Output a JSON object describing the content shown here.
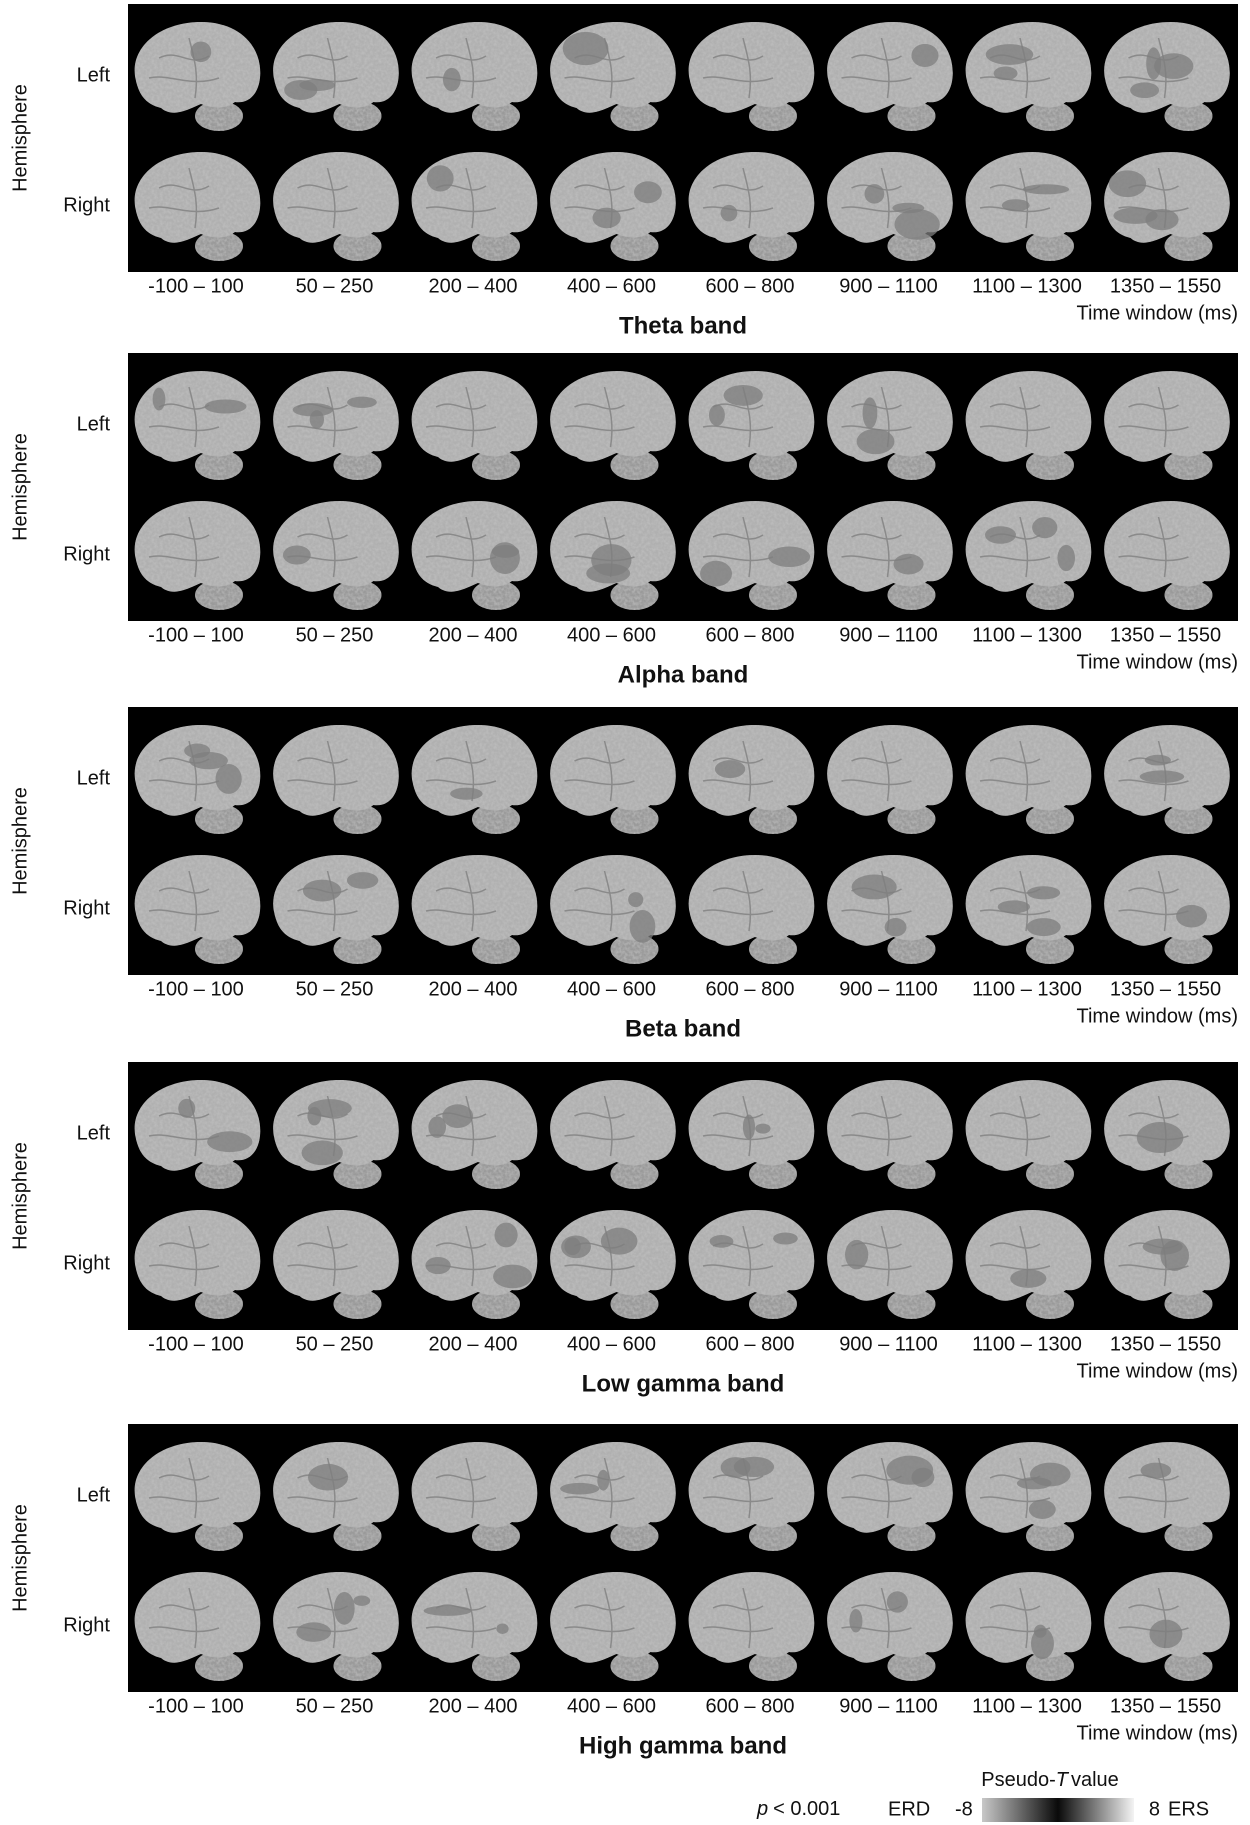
{
  "y_axis_label": "Hemisphere",
  "rows": [
    "Left",
    "Right"
  ],
  "time_windows": [
    "-100 – 100",
    "50 – 250",
    "200 – 400",
    "400 – 600",
    "600 – 800",
    "900 – 1100",
    "1100 – 1300",
    "1350 – 1550"
  ],
  "x_axis_label": "Time window (ms)",
  "panels": [
    "Theta band",
    "Alpha band",
    "Beta band",
    "Low gamma band",
    "High gamma band"
  ],
  "colorbar": {
    "title_prefix": "Pseudo-",
    "title_symbol": "T",
    "title_suffix": "value",
    "significance_symbol": "p",
    "significance_text": "< 0.001",
    "left_label": "ERD",
    "min": -8,
    "max": 8,
    "right_label": "ERS"
  }
}
